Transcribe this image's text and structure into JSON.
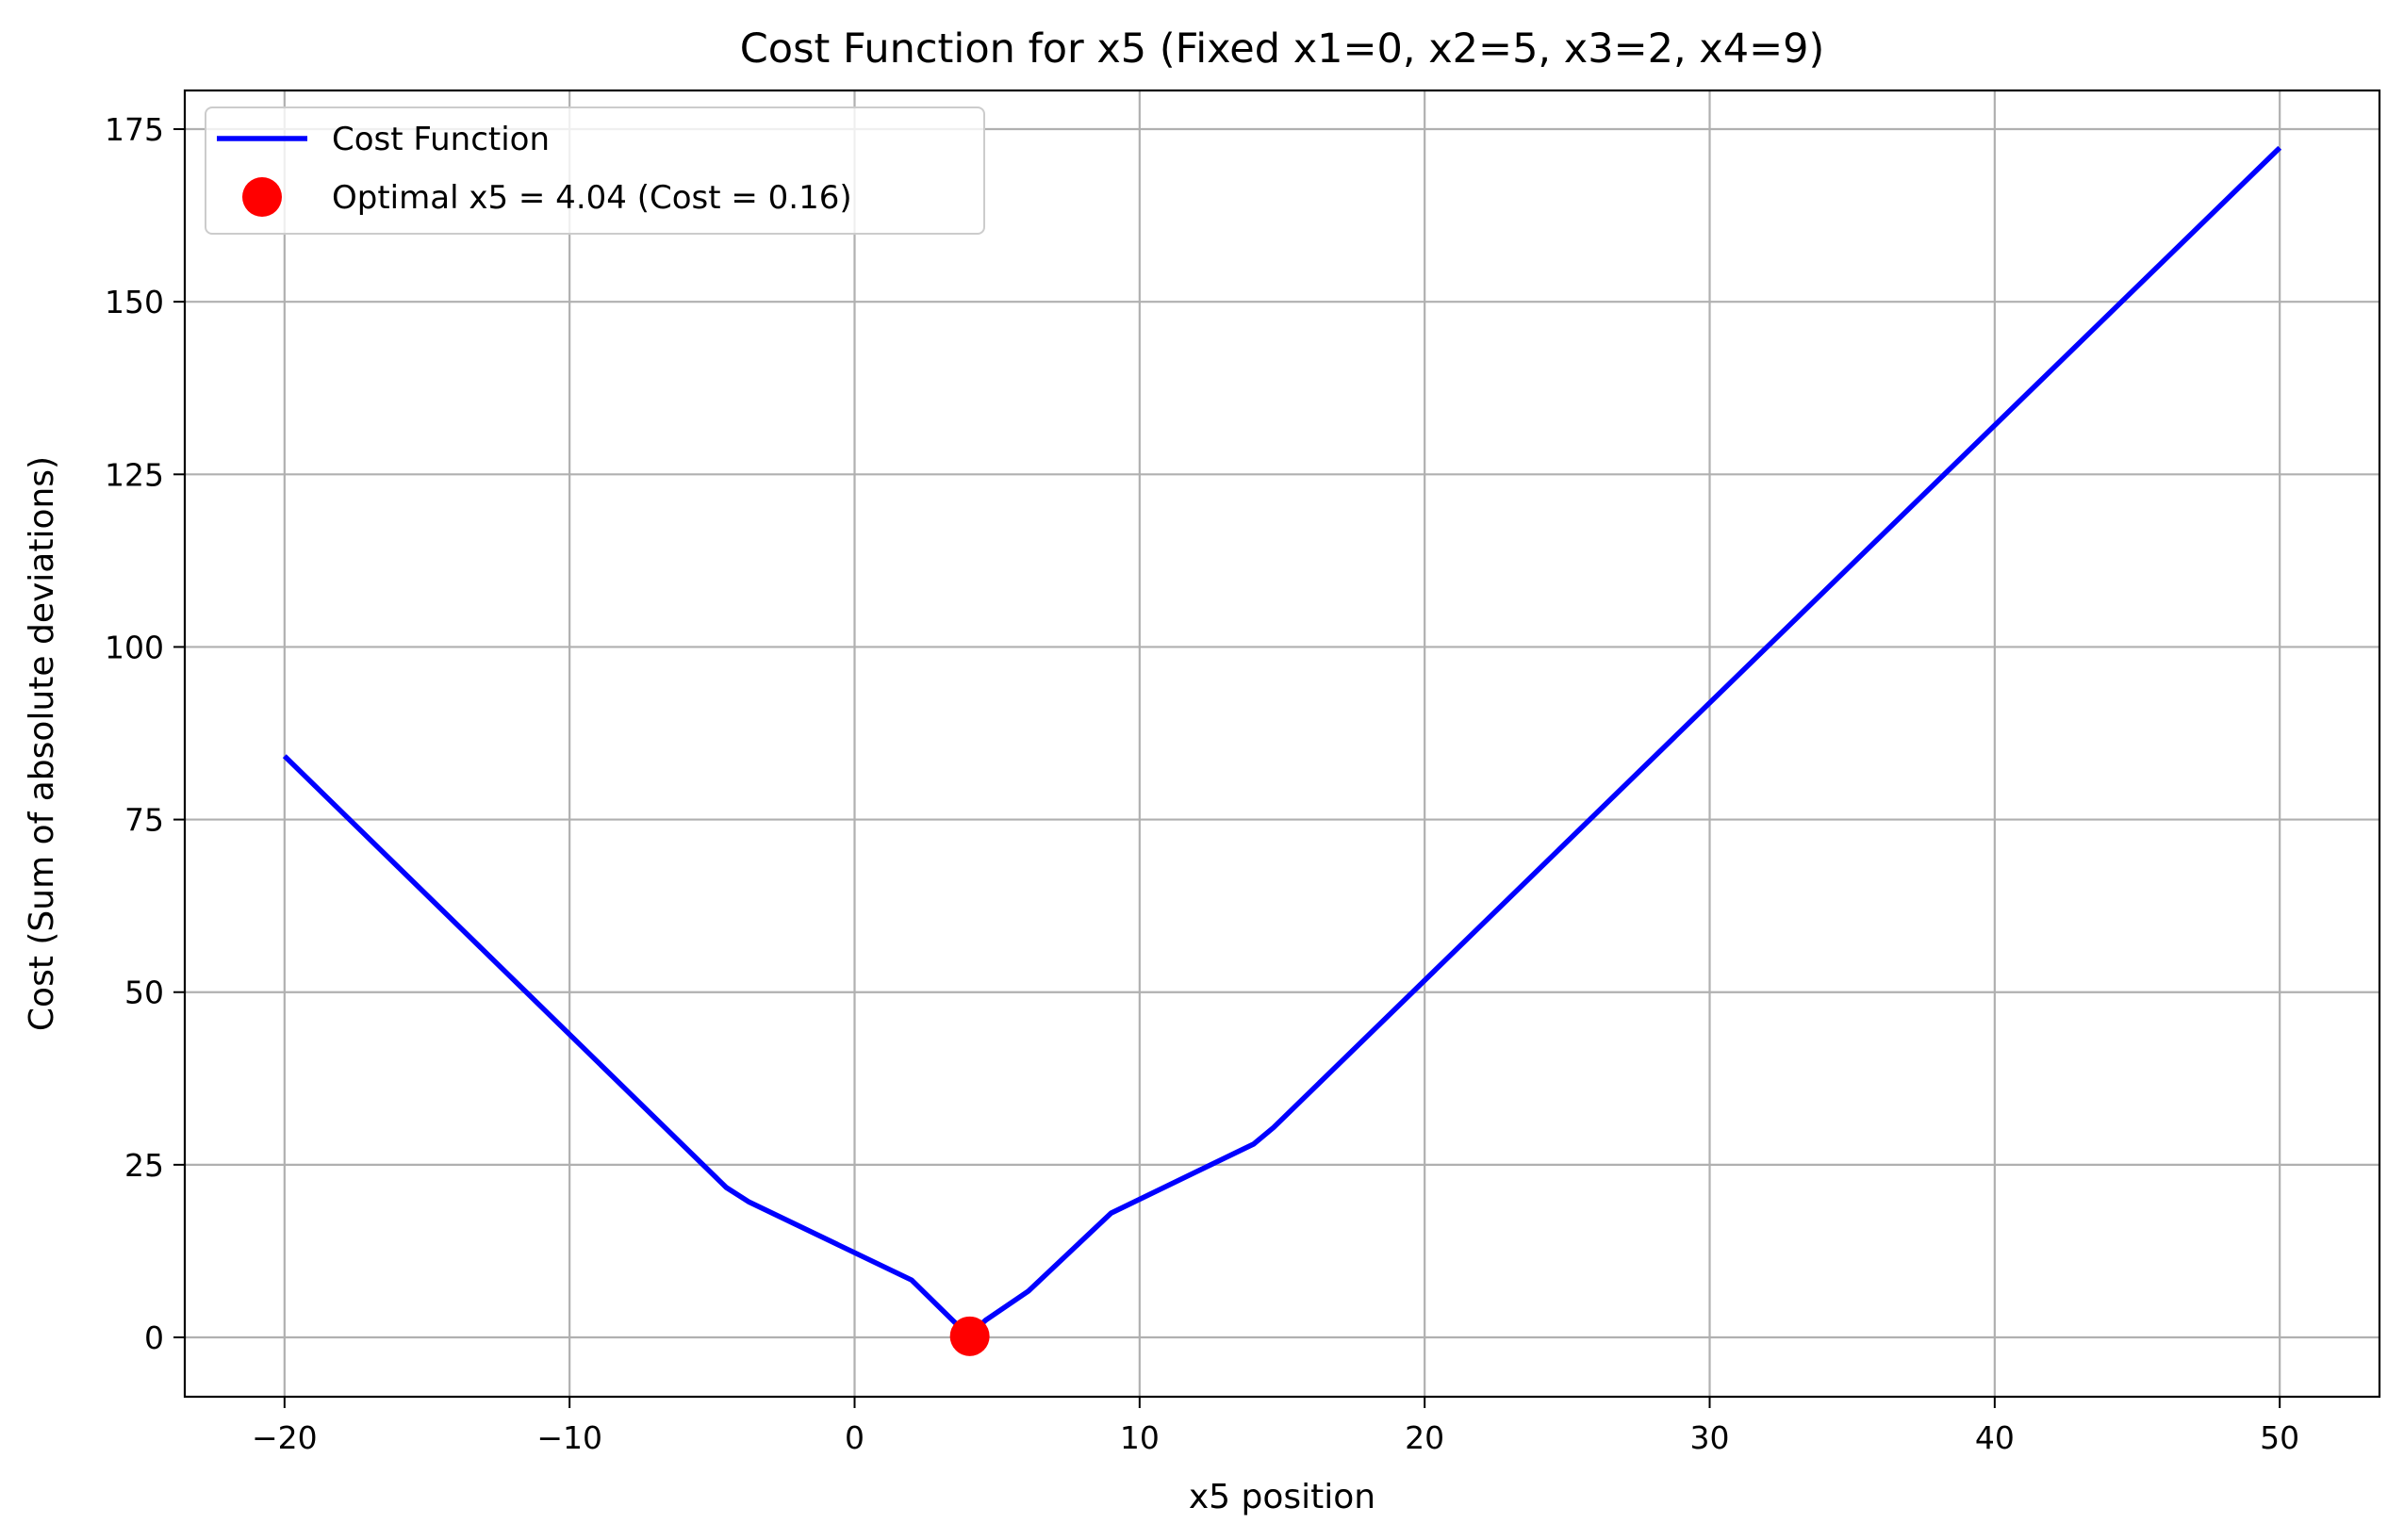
{
  "chart_data": {
    "type": "line",
    "title": "Cost Function for x5 (Fixed x1=0, x2=5, x3=2, x4=9)",
    "xlabel": "x5 position",
    "ylabel": "Cost (Sum of absolute deviations)",
    "xlim": [
      -23.5,
      53.5
    ],
    "ylim": [
      -8.6,
      180.6
    ],
    "x_ticks": [
      -20,
      -10,
      0,
      10,
      20,
      30,
      40,
      50
    ],
    "x_tick_labels": [
      "−20",
      "−10",
      "0",
      "10",
      "20",
      "30",
      "40",
      "50"
    ],
    "y_ticks": [
      0,
      25,
      50,
      75,
      100,
      125,
      150,
      175
    ],
    "y_tick_labels": [
      "0",
      "25",
      "50",
      "75",
      "100",
      "125",
      "150",
      "175"
    ],
    "grid": true,
    "legend_position": "top-left",
    "series": [
      {
        "name": "Cost Function",
        "color": "#0000ff",
        "x": [
          -20,
          -4.5,
          -3.7,
          2.0,
          4.0,
          4.6,
          6.1,
          9.0,
          14.0,
          14.7,
          50
        ],
        "y": [
          84.2,
          21.7,
          19.6,
          8.3,
          0.2,
          2.5,
          6.7,
          18.0,
          28.0,
          30.4,
          172.3
        ]
      }
    ],
    "optimum": {
      "name": "Optimal x5 = 4.04 (Cost = 0.16)",
      "x": 4.04,
      "y": 0.16,
      "color": "#ff0000"
    }
  }
}
